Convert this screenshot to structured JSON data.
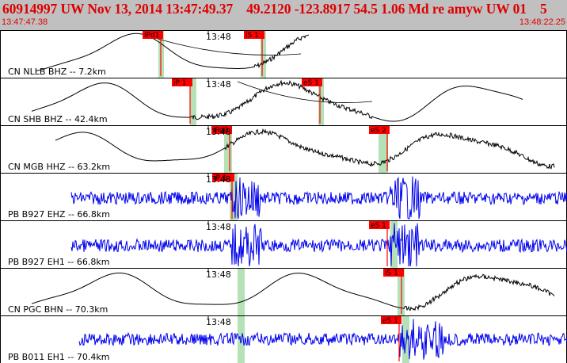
{
  "header": {
    "title": "60914997 UW Nov 13, 2014 13:47:49.37    49.2120 -123.8917 54.5 1.06 Md re amyw UW 01    5",
    "time_start": "13:47:47.38",
    "time_end": "13:48:22.25",
    "background": "#c0c0c0",
    "text_color": "#dd0000"
  },
  "traces": [
    {
      "station": "CN NLLB BHZ -- 7.2km",
      "minute_marker": "13:48",
      "color": "#000000",
      "kind": "long-period",
      "picks": [
        {
          "label": "iPd1"
        },
        {
          "label": "iS 1"
        }
      ]
    },
    {
      "station": "CN SHB BHZ -- 42.4km",
      "minute_marker": "13:48",
      "color": "#000000",
      "kind": "long-period",
      "picks": [
        {
          "label": "iP 1"
        },
        {
          "label": "eS 1"
        }
      ]
    },
    {
      "station": "CN MGB HHZ -- 63.2km",
      "minute_marker": "13:48",
      "color": "#000000",
      "kind": "long-period",
      "picks": [
        {
          "label": "iPd0"
        },
        {
          "label": "eS 2"
        }
      ]
    },
    {
      "station": "PB B927 EHZ -- 66.8km",
      "minute_marker": "13:48",
      "color": "#0000ee",
      "kind": "short-period",
      "picks": [
        {
          "label": "iP 1"
        }
      ]
    },
    {
      "station": "PB B927 EH1 -- 66.8km",
      "minute_marker": "13:48",
      "color": "#0000ee",
      "kind": "short-period",
      "picks": [
        {
          "label": "eS 1"
        }
      ]
    },
    {
      "station": "CN PGC BHN -- 70.3km",
      "minute_marker": "13:48",
      "color": "#000000",
      "kind": "long-period",
      "picks": [
        {
          "label": "iS 1"
        }
      ]
    },
    {
      "station": "PB B011 EH1 -- 70.4km",
      "minute_marker": "13:48",
      "color": "#0000ee",
      "kind": "short-period",
      "picks": [
        {
          "label": "eS 1"
        }
      ]
    }
  ]
}
